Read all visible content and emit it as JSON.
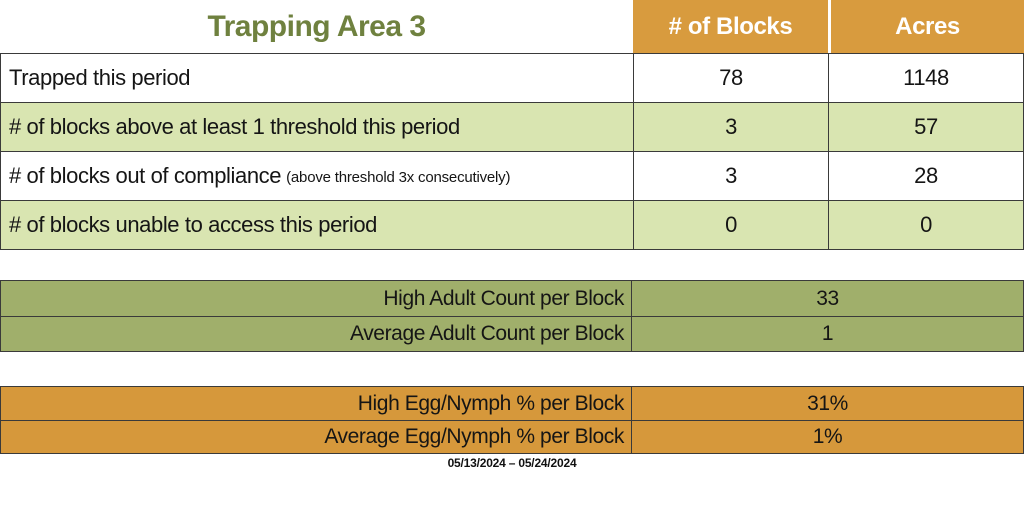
{
  "colors": {
    "orange": "#D89B3E",
    "orange2": "#D6983B",
    "olive_title": "#6F813F",
    "light_green": "#D9E5B1",
    "olive_row": "#A0AF6B",
    "border": "#3A3A3A"
  },
  "main_table": {
    "title": "Trapping Area 3",
    "columns": {
      "blocks": "# of Blocks",
      "acres": "Acres"
    },
    "rows": [
      {
        "label": "Trapped this period",
        "note": "",
        "blocks": "78",
        "acres": "1148"
      },
      {
        "label": "# of blocks above at least 1 threshold this period",
        "note": "",
        "blocks": "3",
        "acres": "57"
      },
      {
        "label": "# of blocks out of compliance",
        "note": "(above threshold 3x consecutively)",
        "blocks": "3",
        "acres": "28"
      },
      {
        "label": "# of blocks unable to access this period",
        "note": "",
        "blocks": "0",
        "acres": "0"
      }
    ]
  },
  "adult_table": {
    "rows": [
      {
        "label": "High Adult Count per Block",
        "value": "33"
      },
      {
        "label": "Average Adult Count per Block",
        "value": "1"
      }
    ]
  },
  "egg_table": {
    "rows": [
      {
        "label": "High Egg/Nymph % per Block",
        "value": "31%"
      },
      {
        "label": "Average Egg/Nymph % per Block",
        "value": "1%"
      }
    ]
  },
  "footer": {
    "date_range": "05/13/2024 – 05/24/2024"
  }
}
